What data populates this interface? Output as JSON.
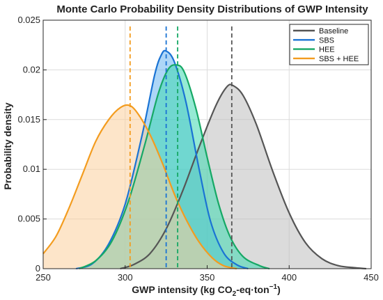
{
  "chart_data": {
    "type": "area",
    "title": "Monte Carlo Probability Density Distributions of GWP Intensity",
    "xlabel_prefix": "GWP intensity (kg CO",
    "xlabel_sub": "2",
    "xlabel_mid": "-eq·ton",
    "xlabel_sup": "−1",
    "xlabel_suffix": ")",
    "ylabel": "Probability density",
    "xlim": [
      250,
      450
    ],
    "ylim": [
      0,
      0.025
    ],
    "xticks": [
      250,
      300,
      350,
      400,
      450
    ],
    "xtick_labels": [
      "250",
      "300",
      "350",
      "400",
      "450"
    ],
    "yticks": [
      0,
      0.005,
      0.01,
      0.015,
      0.02,
      0.025
    ],
    "ytick_labels": [
      "0",
      "0.005",
      "0.01",
      "0.015",
      "0.02",
      "0.025"
    ],
    "grid": true,
    "legend_position": "top-right",
    "series": [
      {
        "name": "Baseline",
        "color": "#555555",
        "fill": "#bdbdbd",
        "mean": 365,
        "points": [
          [
            297,
            0
          ],
          [
            305,
            0.0004
          ],
          [
            315,
            0.0015
          ],
          [
            325,
            0.004
          ],
          [
            335,
            0.0078
          ],
          [
            345,
            0.0122
          ],
          [
            355,
            0.0163
          ],
          [
            362,
            0.0183
          ],
          [
            366,
            0.0184
          ],
          [
            372,
            0.0174
          ],
          [
            380,
            0.0145
          ],
          [
            390,
            0.0098
          ],
          [
            400,
            0.0056
          ],
          [
            410,
            0.0026
          ],
          [
            420,
            0.001
          ],
          [
            430,
            0.0003
          ],
          [
            440,
            0.0001
          ],
          [
            447,
            0
          ]
        ]
      },
      {
        "name": "SBS",
        "color": "#1a73d4",
        "fill": "#6ab4f0",
        "mean": 325,
        "points": [
          [
            270,
            0
          ],
          [
            280,
            0.0005
          ],
          [
            290,
            0.0025
          ],
          [
            300,
            0.0065
          ],
          [
            310,
            0.0132
          ],
          [
            318,
            0.0195
          ],
          [
            322,
            0.0215
          ],
          [
            325,
            0.0219
          ],
          [
            330,
            0.0208
          ],
          [
            337,
            0.0168
          ],
          [
            345,
            0.0101
          ],
          [
            352,
            0.0048
          ],
          [
            360,
            0.0016
          ],
          [
            368,
            0.0004
          ],
          [
            375,
            0
          ]
        ]
      },
      {
        "name": "HEE",
        "color": "#16a865",
        "fill": "#3ed9b0",
        "mean": 332,
        "points": [
          [
            272,
            0
          ],
          [
            282,
            0.0008
          ],
          [
            292,
            0.0028
          ],
          [
            302,
            0.0068
          ],
          [
            312,
            0.0125
          ],
          [
            320,
            0.0175
          ],
          [
            326,
            0.02
          ],
          [
            331,
            0.0205
          ],
          [
            336,
            0.0198
          ],
          [
            343,
            0.0162
          ],
          [
            350,
            0.0112
          ],
          [
            357,
            0.0065
          ],
          [
            364,
            0.0032
          ],
          [
            372,
            0.0012
          ],
          [
            382,
            0.0003
          ],
          [
            388,
            0
          ]
        ]
      },
      {
        "name": "SBS + HEE",
        "color": "#f39c1f",
        "fill": "#fbcf9c",
        "mean": 303,
        "points": [
          [
            250,
            0.0015
          ],
          [
            258,
            0.0033
          ],
          [
            266,
            0.0062
          ],
          [
            274,
            0.0095
          ],
          [
            282,
            0.0128
          ],
          [
            290,
            0.015
          ],
          [
            297,
            0.0162
          ],
          [
            303,
            0.0164
          ],
          [
            309,
            0.0153
          ],
          [
            316,
            0.0132
          ],
          [
            323,
            0.0105
          ],
          [
            330,
            0.0075
          ],
          [
            337,
            0.005
          ],
          [
            345,
            0.0027
          ],
          [
            353,
            0.0011
          ],
          [
            360,
            0.0003
          ],
          [
            368,
            0
          ]
        ]
      }
    ]
  }
}
